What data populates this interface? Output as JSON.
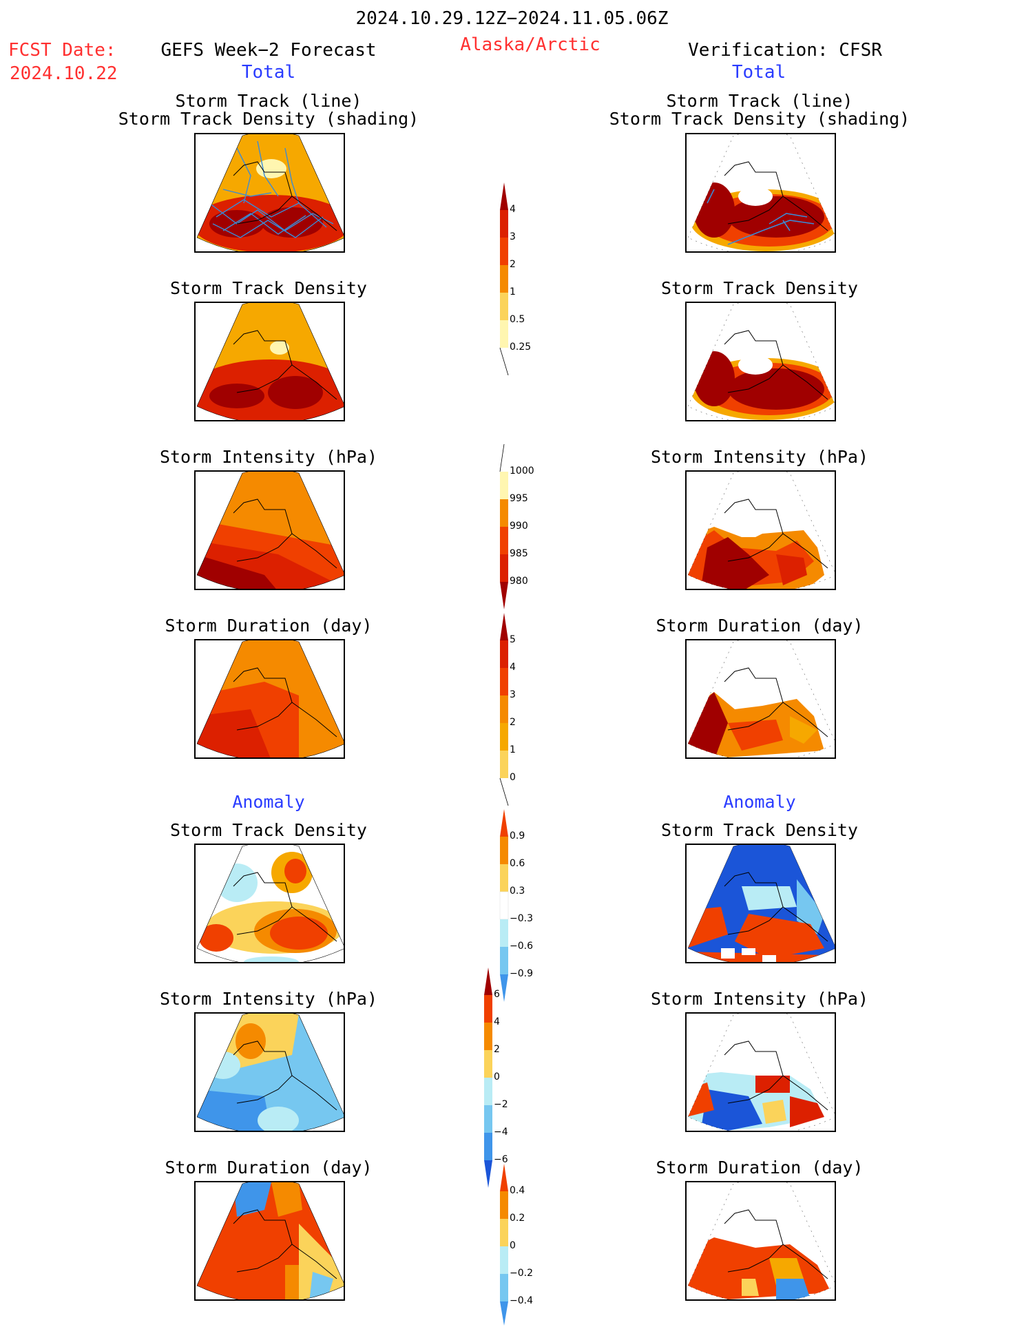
{
  "header": {
    "date_range": "2024.10.29.12Z−2024.11.05.06Z",
    "region": "Alaska/Arctic",
    "fcst_label": "FCST Date:",
    "fcst_date": "2024.10.22",
    "left_title": "GEFS Week−2 Forecast",
    "right_title": "Verification: CFSR",
    "total_label": "Total",
    "anomaly_label": "Anomaly"
  },
  "panel_titles": {
    "track_line": "Storm Track (line)",
    "track_shading": "Storm Track Density (shading)",
    "density": "Storm Track Density",
    "intensity": "Storm Intensity (hPa)",
    "duration": "Storm Duration (day)"
  },
  "colorbars": {
    "density_total": [
      "4",
      "3",
      "2",
      "1",
      "0.5",
      "0.25"
    ],
    "intensity_total": [
      "1000",
      "995",
      "990",
      "985",
      "980"
    ],
    "duration_total": [
      "5",
      "4",
      "3",
      "2",
      "1",
      "0"
    ],
    "density_anom": [
      "0.9",
      "0.6",
      "0.3",
      "−0.3",
      "−0.6",
      "−0.9"
    ],
    "intensity_anom": [
      "6",
      "4",
      "2",
      "0",
      "−2",
      "−4",
      "−6"
    ],
    "duration_anom": [
      "0.4",
      "0.2",
      "0",
      "−0.2",
      "−0.4"
    ]
  },
  "colors": {
    "dark_red": "#a00000",
    "red": "#dc2000",
    "red_orange": "#f04000",
    "orange": "#f58a00",
    "light_orange": "#f6a800",
    "yellow": "#fbd35a",
    "pale_yellow": "#fff6b0",
    "light_blue": "#b9ecf5",
    "mid_blue": "#76c7f0",
    "blue": "#3f95ea",
    "dark_blue": "#1b55d8",
    "track_line": "#3b8bd6"
  }
}
